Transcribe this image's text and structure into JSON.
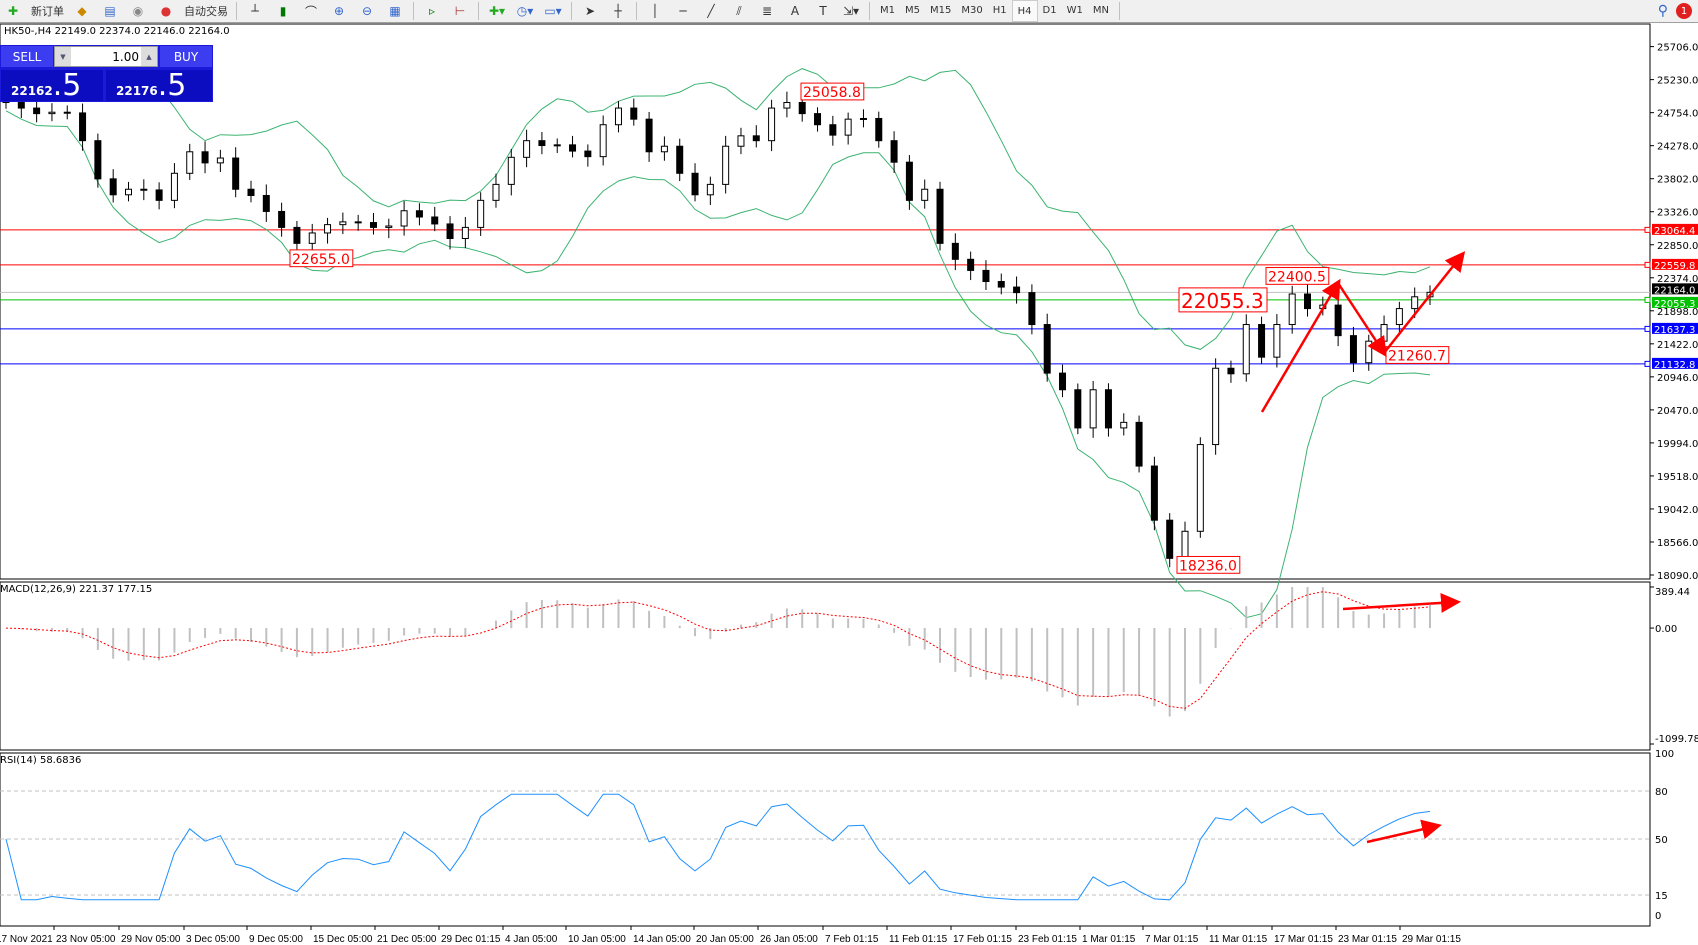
{
  "toolbar": {
    "new_order": "新订单",
    "auto_trading": "自动交易",
    "icons": [
      "new-order-icon",
      "market-watch-icon",
      "navigator-icon",
      "terminal-icon",
      "auto-trading-icon",
      "bar-chart-icon",
      "candlestick-icon",
      "line-chart-icon",
      "zoom-in-icon",
      "zoom-out-icon",
      "tile-windows-icon",
      "auto-scroll-icon",
      "chart-shift-icon",
      "indicators-icon",
      "periods-icon",
      "templates-icon",
      "cursor-icon",
      "crosshair-icon",
      "vertical-line-icon",
      "horizontal-line-icon",
      "trendline-icon",
      "equidistant-channel-icon",
      "fibonacci-icon",
      "text-icon",
      "text-label-icon",
      "arrows-icon"
    ],
    "timeframes": [
      "M1",
      "M5",
      "M15",
      "M30",
      "H1",
      "H4",
      "D1",
      "W1",
      "MN"
    ],
    "active_timeframe": "H4",
    "notification_count": "1"
  },
  "chart_title": "HK50-,H4  22149.0 22374.0 22146.0 22164.0",
  "trade_panel": {
    "sell_label": "SELL",
    "buy_label": "BUY",
    "lot": "1.00",
    "sell_main": "22162",
    "sell_pip": ".5",
    "buy_main": "22176",
    "buy_pip": ".5"
  },
  "chart_data": {
    "type": "candlestick",
    "symbol": "HK50-",
    "timeframe": "H4",
    "ohlc_last": {
      "open": 22149.0,
      "high": 22374.0,
      "low": 22146.0,
      "close": 22164.0
    },
    "closes": [
      24900,
      24820,
      24740,
      24760,
      24750,
      24350,
      23800,
      23570,
      23650,
      23640,
      23490,
      23880,
      24190,
      24030,
      24100,
      23650,
      23560,
      23330,
      23100,
      22870,
      23020,
      23140,
      23180,
      23170,
      23100,
      23120,
      23340,
      23250,
      23150,
      22940,
      23100,
      23490,
      23720,
      24110,
      24350,
      24280,
      24290,
      24200,
      24120,
      24580,
      24820,
      24660,
      24190,
      24270,
      23880,
      23570,
      23720,
      24270,
      24420,
      24350,
      24820,
      24900,
      24740,
      24580,
      24430,
      24660,
      24670,
      24350,
      24040,
      23490,
      23650,
      22870,
      22640,
      22480,
      22320,
      22240,
      22160,
      21700,
      21000,
      20760,
      20210,
      20760,
      20210,
      20290,
      19660,
      18880,
      18330,
      18720,
      19970,
      21070,
      20990,
      21700,
      21230,
      21700,
      22140,
      21930,
      21980,
      21540,
      21150,
      21460,
      21700,
      21930,
      22100,
      22164
    ],
    "y_axis_ticks": [
      "25706.0",
      "25230.0",
      "24754.0",
      "24278.0",
      "23802.0",
      "23326.0",
      "22850.0",
      "22374.0",
      "21898.0",
      "21422.0",
      "20946.0",
      "20470.0",
      "19994.0",
      "19518.0",
      "19042.0",
      "18566.0",
      "18090.0"
    ],
    "ylim": [
      18090,
      25706
    ],
    "x_axis_ticks": [
      "17 Nov 2021",
      "23 Nov 05:00",
      "29 Nov 05:00",
      "3 Dec 05:00",
      "9 Dec 05:00",
      "15 Dec 05:00",
      "21 Dec 05:00",
      "29 Dec 01:15",
      "4 Jan 05:00",
      "10 Jan 05:00",
      "14 Jan 05:00",
      "20 Jan 05:00",
      "26 Jan 05:00",
      "7 Feb 01:15",
      "11 Feb 01:15",
      "17 Feb 01:15",
      "23 Feb 01:15",
      "1 Mar 01:15",
      "7 Mar 01:15",
      "11 Mar 01:15",
      "17 Mar 01:15",
      "23 Mar 01:15",
      "29 Mar 01:15"
    ],
    "overlays": {
      "bollinger_bands": true,
      "band_color": "#3cb371"
    },
    "horizontal_lines": [
      {
        "price": "23064.4",
        "color": "#ff0000"
      },
      {
        "price": "22559.8",
        "color": "#ff0000"
      },
      {
        "price": "22164.0",
        "color": "#000000",
        "current": true
      },
      {
        "price": "22055.3",
        "color": "#00c000"
      },
      {
        "price": "21637.3",
        "color": "#0000ff"
      },
      {
        "price": "21132.8",
        "color": "#0000ff"
      }
    ],
    "price_annotations": [
      "25058.8",
      "22655.0",
      "22400.5",
      "22055.3",
      "21260.7",
      "18236.0"
    ],
    "annotation_color": "#ff0000",
    "macd": {
      "label": "MACD(12,26,9) 221.37 177.15",
      "ticks": [
        "389.44",
        "0.00",
        "-1099.78"
      ],
      "ylim": [
        -1099.78,
        389.44
      ],
      "histogram_color": "#c0c0c0",
      "signal_color": "#ff0000"
    },
    "rsi": {
      "label": "RSI(14) 58.6836",
      "ticks": [
        "100",
        "80",
        "50",
        "15",
        "0"
      ],
      "ylim": [
        0,
        100
      ],
      "levels": [
        80,
        50,
        15
      ],
      "color": "#1e90ff"
    }
  }
}
